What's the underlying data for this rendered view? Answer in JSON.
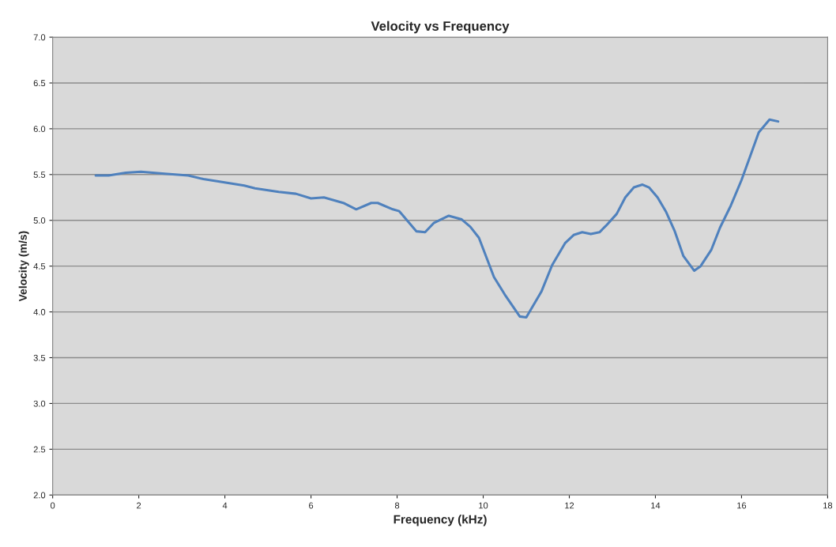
{
  "chart_data": {
    "type": "line",
    "title": "Velocity vs Frequency",
    "xlabel": "Frequency (kHz)",
    "ylabel": "Velocity (m/s)",
    "x": [
      1.0,
      1.3,
      1.7,
      2.05,
      2.6,
      3.15,
      3.5,
      4.05,
      4.45,
      4.7,
      5.25,
      5.65,
      6.0,
      6.3,
      6.75,
      7.05,
      7.4,
      7.55,
      7.9,
      8.05,
      8.45,
      8.65,
      8.85,
      9.2,
      9.5,
      9.7,
      9.9,
      10.25,
      10.5,
      10.85,
      11.0,
      11.35,
      11.6,
      11.9,
      12.1,
      12.3,
      12.5,
      12.7,
      12.85,
      13.1,
      13.3,
      13.5,
      13.7,
      13.85,
      14.05,
      14.25,
      14.45,
      14.65,
      14.9,
      15.05,
      15.3,
      15.5,
      15.75,
      16.0,
      16.2,
      16.4,
      16.65,
      16.85
    ],
    "series": [
      {
        "color": "#4f81bd",
        "values": [
          5.49,
          5.49,
          5.52,
          5.53,
          5.51,
          5.49,
          5.45,
          5.41,
          5.38,
          5.35,
          5.31,
          5.29,
          5.24,
          5.25,
          5.19,
          5.12,
          5.19,
          5.19,
          5.12,
          5.1,
          4.88,
          4.87,
          4.97,
          5.05,
          5.01,
          4.93,
          4.81,
          4.38,
          4.19,
          3.95,
          3.94,
          4.22,
          4.51,
          4.75,
          4.84,
          4.87,
          4.85,
          4.87,
          4.94,
          5.07,
          5.25,
          5.36,
          5.39,
          5.36,
          5.25,
          5.09,
          4.88,
          4.61,
          4.45,
          4.5,
          4.68,
          4.92,
          5.16,
          5.44,
          5.7,
          5.96,
          6.1,
          6.08
        ]
      }
    ],
    "xlim": [
      0,
      18
    ],
    "xticks": [
      0,
      2,
      4,
      6,
      8,
      10,
      12,
      14,
      16,
      18
    ],
    "ylim": [
      2.0,
      7.0
    ],
    "yticks": [
      {
        "value": 2.0,
        "label": "2.0"
      },
      {
        "value": 2.5,
        "label": "2.5"
      },
      {
        "value": 3.0,
        "label": "3.0"
      },
      {
        "value": 3.5,
        "label": "3.5"
      },
      {
        "value": 4.0,
        "label": "4.0"
      },
      {
        "value": 4.5,
        "label": "4.5"
      },
      {
        "value": 5.0,
        "label": "5.0"
      },
      {
        "value": 5.5,
        "label": "5.5"
      },
      {
        "value": 6.0,
        "label": "6.0"
      },
      {
        "value": 6.5,
        "label": "6.5"
      },
      {
        "value": 7.0,
        "label": "7.0"
      }
    ],
    "grid": "y",
    "marker": "none",
    "line_style": "solid"
  }
}
